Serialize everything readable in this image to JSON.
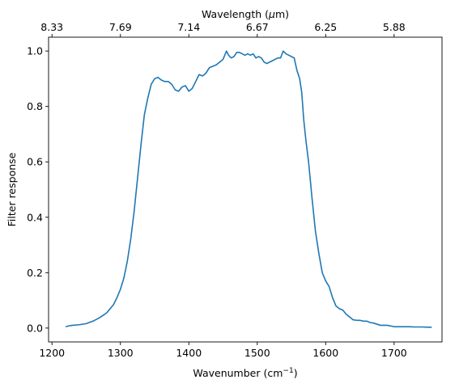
{
  "chart_data": {
    "type": "line",
    "title": "",
    "xlabel": "Wavenumber (cm",
    "xlabel_sup": "−1",
    "xlabel_tail": ")",
    "ylabel": "Filter response",
    "secondary_xlabel": "Wavelength (",
    "secondary_xlabel_mu": "μ",
    "secondary_xlabel_tail": "m)",
    "xlim": [
      1195,
      1770
    ],
    "ylim": [
      -0.05,
      1.05
    ],
    "xticks": [
      1200,
      1300,
      1400,
      1500,
      1600,
      1700
    ],
    "yticks": [
      0.0,
      0.2,
      0.4,
      0.6,
      0.8,
      1.0
    ],
    "ytick_labels": [
      "0.0",
      "0.2",
      "0.4",
      "0.6",
      "0.8",
      "1.0"
    ],
    "secondary_xticks": [
      {
        "label": "8.33",
        "wavenumber": 1200
      },
      {
        "label": "7.69",
        "wavenumber": 1300
      },
      {
        "label": "7.14",
        "wavenumber": 1400
      },
      {
        "label": "6.67",
        "wavenumber": 1500
      },
      {
        "label": "6.25",
        "wavenumber": 1600
      },
      {
        "label": "5.88",
        "wavenumber": 1700
      }
    ],
    "grid": false,
    "series": [
      {
        "color": "#1f77b4",
        "x": [
          1220,
          1225,
          1230,
          1240,
          1250,
          1260,
          1270,
          1280,
          1290,
          1295,
          1300,
          1305,
          1310,
          1315,
          1320,
          1325,
          1330,
          1335,
          1340,
          1345,
          1350,
          1355,
          1360,
          1365,
          1370,
          1375,
          1380,
          1385,
          1390,
          1395,
          1400,
          1405,
          1410,
          1415,
          1420,
          1425,
          1430,
          1435,
          1440,
          1445,
          1450,
          1455,
          1458,
          1462,
          1466,
          1470,
          1474,
          1478,
          1482,
          1486,
          1490,
          1494,
          1498,
          1502,
          1506,
          1510,
          1514,
          1518,
          1522,
          1526,
          1530,
          1534,
          1538,
          1542,
          1546,
          1550,
          1554,
          1558,
          1562,
          1565,
          1568,
          1571,
          1575,
          1580,
          1585,
          1590,
          1595,
          1600,
          1605,
          1610,
          1615,
          1620,
          1625,
          1630,
          1635,
          1640,
          1645,
          1650,
          1655,
          1660,
          1665,
          1670,
          1680,
          1690,
          1700,
          1710,
          1720,
          1730,
          1740,
          1750,
          1755
        ],
        "y": [
          0.005,
          0.008,
          0.01,
          0.012,
          0.016,
          0.025,
          0.038,
          0.055,
          0.085,
          0.11,
          0.14,
          0.18,
          0.24,
          0.32,
          0.42,
          0.54,
          0.66,
          0.77,
          0.83,
          0.88,
          0.9,
          0.905,
          0.895,
          0.89,
          0.89,
          0.88,
          0.86,
          0.855,
          0.87,
          0.875,
          0.855,
          0.865,
          0.89,
          0.915,
          0.91,
          0.92,
          0.94,
          0.945,
          0.95,
          0.96,
          0.97,
          1.0,
          0.985,
          0.975,
          0.98,
          0.995,
          0.995,
          0.99,
          0.985,
          0.99,
          0.985,
          0.99,
          0.975,
          0.98,
          0.975,
          0.96,
          0.955,
          0.96,
          0.965,
          0.97,
          0.975,
          0.975,
          1.0,
          0.99,
          0.985,
          0.98,
          0.975,
          0.93,
          0.9,
          0.85,
          0.75,
          0.68,
          0.6,
          0.47,
          0.35,
          0.27,
          0.2,
          0.17,
          0.15,
          0.11,
          0.08,
          0.07,
          0.065,
          0.05,
          0.04,
          0.03,
          0.028,
          0.028,
          0.025,
          0.025,
          0.02,
          0.018,
          0.01,
          0.01,
          0.005,
          0.005,
          0.005,
          0.004,
          0.004,
          0.003,
          0.003
        ]
      }
    ]
  }
}
